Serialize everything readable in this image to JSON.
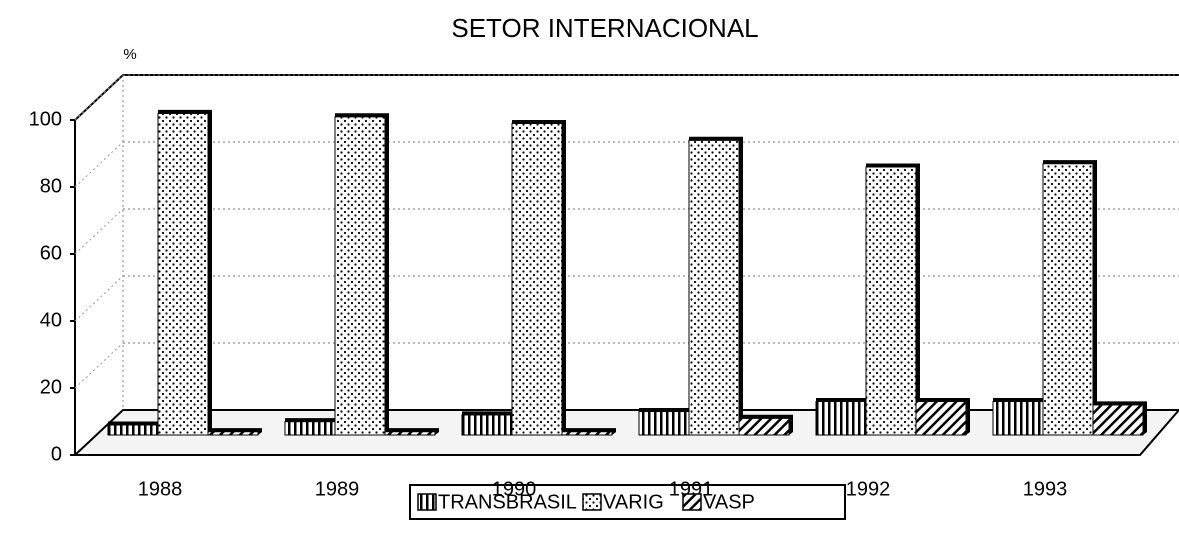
{
  "chart_data": {
    "type": "bar",
    "title": "SETOR INTERNACIONAL",
    "y_label": "%",
    "categories": [
      "1988",
      "1989",
      "1990",
      "1991",
      "1992",
      "1993"
    ],
    "series": [
      {
        "name": "TRANSBRASIL",
        "color": "#000000",
        "values": [
          3,
          4,
          6,
          7,
          10,
          10
        ]
      },
      {
        "name": "VARIG",
        "color": "#000000",
        "values": [
          96,
          95,
          93,
          88,
          80,
          81
        ]
      },
      {
        "name": "VASP",
        "color": "#000000",
        "values": [
          1,
          1,
          1,
          5,
          10,
          9
        ]
      }
    ],
    "ylim": [
      0,
      100
    ],
    "yticks": [
      0,
      20,
      40,
      60,
      80,
      100
    ],
    "grid": true,
    "legend": "bottom"
  }
}
